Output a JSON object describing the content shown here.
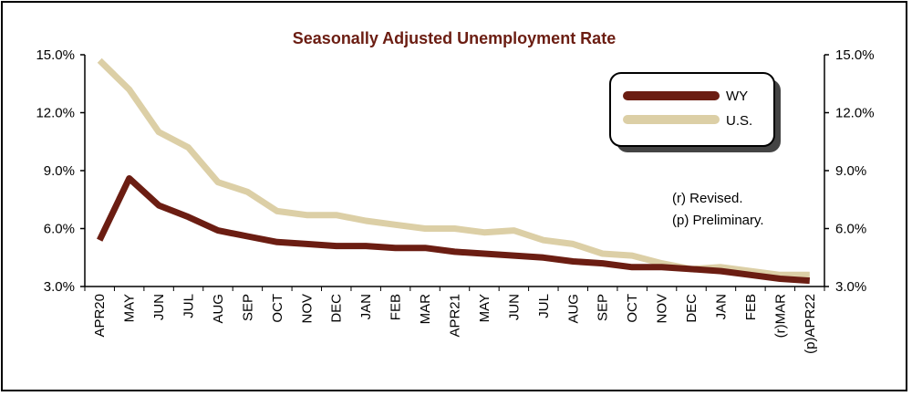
{
  "chart_data": {
    "type": "line",
    "title": "Seasonally Adjusted Unemployment Rate",
    "xlabel": "",
    "ylabel": "",
    "ylim": [
      3.0,
      15.0
    ],
    "y_ticks": [
      "3.0%",
      "6.0%",
      "9.0%",
      "12.0%",
      "15.0%"
    ],
    "y_tick_values": [
      3,
      6,
      9,
      12,
      15
    ],
    "categories": [
      "APR20",
      "MAY",
      "JUN",
      "JUL",
      "AUG",
      "SEP",
      "OCT",
      "NOV",
      "DEC",
      "JAN",
      "FEB",
      "MAR",
      "APR21",
      "MAY",
      "JUN",
      "JUL",
      "AUG",
      "SEP",
      "OCT",
      "NOV",
      "DEC",
      "JAN",
      "FEB",
      "(r)MAR",
      "(p)APR22"
    ],
    "series": [
      {
        "name": "WY",
        "color": "#6b1d12",
        "values": [
          5.4,
          8.6,
          7.2,
          6.6,
          5.9,
          5.6,
          5.3,
          5.2,
          5.1,
          5.1,
          5.0,
          5.0,
          4.8,
          4.7,
          4.6,
          4.5,
          4.3,
          4.2,
          4.0,
          4.0,
          3.9,
          3.8,
          3.6,
          3.4,
          3.3
        ]
      },
      {
        "name": "U.S.",
        "color": "#dccfa6",
        "values": [
          14.7,
          13.2,
          11.0,
          10.2,
          8.4,
          7.9,
          6.9,
          6.7,
          6.7,
          6.4,
          6.2,
          6.0,
          6.0,
          5.8,
          5.9,
          5.4,
          5.2,
          4.7,
          4.6,
          4.2,
          3.9,
          4.0,
          3.8,
          3.6,
          3.6
        ]
      }
    ],
    "grid": false,
    "legend_position": "top-right",
    "notes": [
      "(r) Revised.",
      "(p) Preliminary."
    ]
  }
}
